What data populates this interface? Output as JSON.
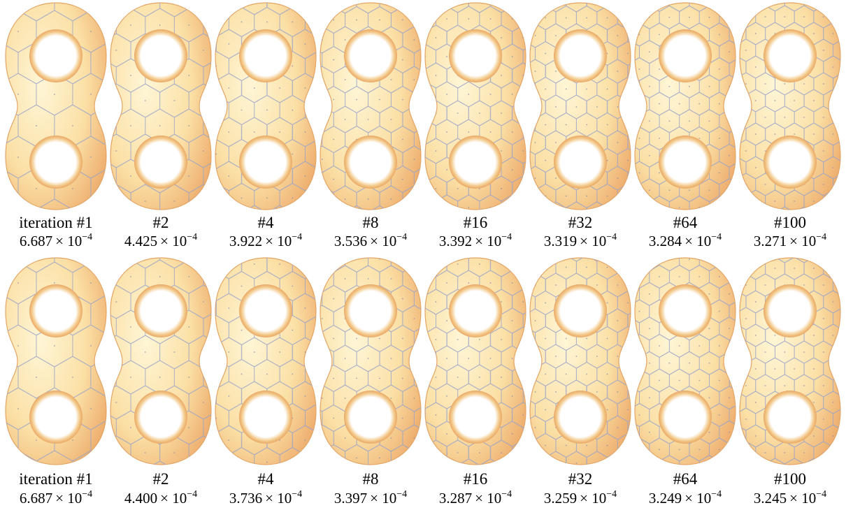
{
  "rows": [
    {
      "cells": [
        {
          "label": "iteration #1",
          "mantissa": "6.687",
          "base": "× 10",
          "exponent": "−4"
        },
        {
          "label": "#2",
          "mantissa": "4.425",
          "base": "× 10",
          "exponent": "−4"
        },
        {
          "label": "#4",
          "mantissa": "3.922",
          "base": "× 10",
          "exponent": "−4"
        },
        {
          "label": "#8",
          "mantissa": "3.536",
          "base": "× 10",
          "exponent": "−4"
        },
        {
          "label": "#16",
          "mantissa": "3.392",
          "base": "× 10",
          "exponent": "−4"
        },
        {
          "label": "#32",
          "mantissa": "3.319",
          "base": "× 10",
          "exponent": "−4"
        },
        {
          "label": "#64",
          "mantissa": "3.284",
          "base": "× 10",
          "exponent": "−4"
        },
        {
          "label": "#100",
          "mantissa": "3.271",
          "base": "× 10",
          "exponent": "−4"
        }
      ]
    },
    {
      "cells": [
        {
          "label": "iteration #1",
          "mantissa": "6.687",
          "base": "× 10",
          "exponent": "−4"
        },
        {
          "label": "#2",
          "mantissa": "4.400",
          "base": "× 10",
          "exponent": "−4"
        },
        {
          "label": "#4",
          "mantissa": "3.736",
          "base": "× 10",
          "exponent": "−4"
        },
        {
          "label": "#8",
          "mantissa": "3.397",
          "base": "× 10",
          "exponent": "−4"
        },
        {
          "label": "#16",
          "mantissa": "3.287",
          "base": "× 10",
          "exponent": "−4"
        },
        {
          "label": "#32",
          "mantissa": "3.259",
          "base": "× 10",
          "exponent": "−4"
        },
        {
          "label": "#64",
          "mantissa": "3.249",
          "base": "× 10",
          "exponent": "−4"
        },
        {
          "label": "#100",
          "mantissa": "3.245",
          "base": "× 10",
          "exponent": "−4"
        }
      ]
    }
  ]
}
